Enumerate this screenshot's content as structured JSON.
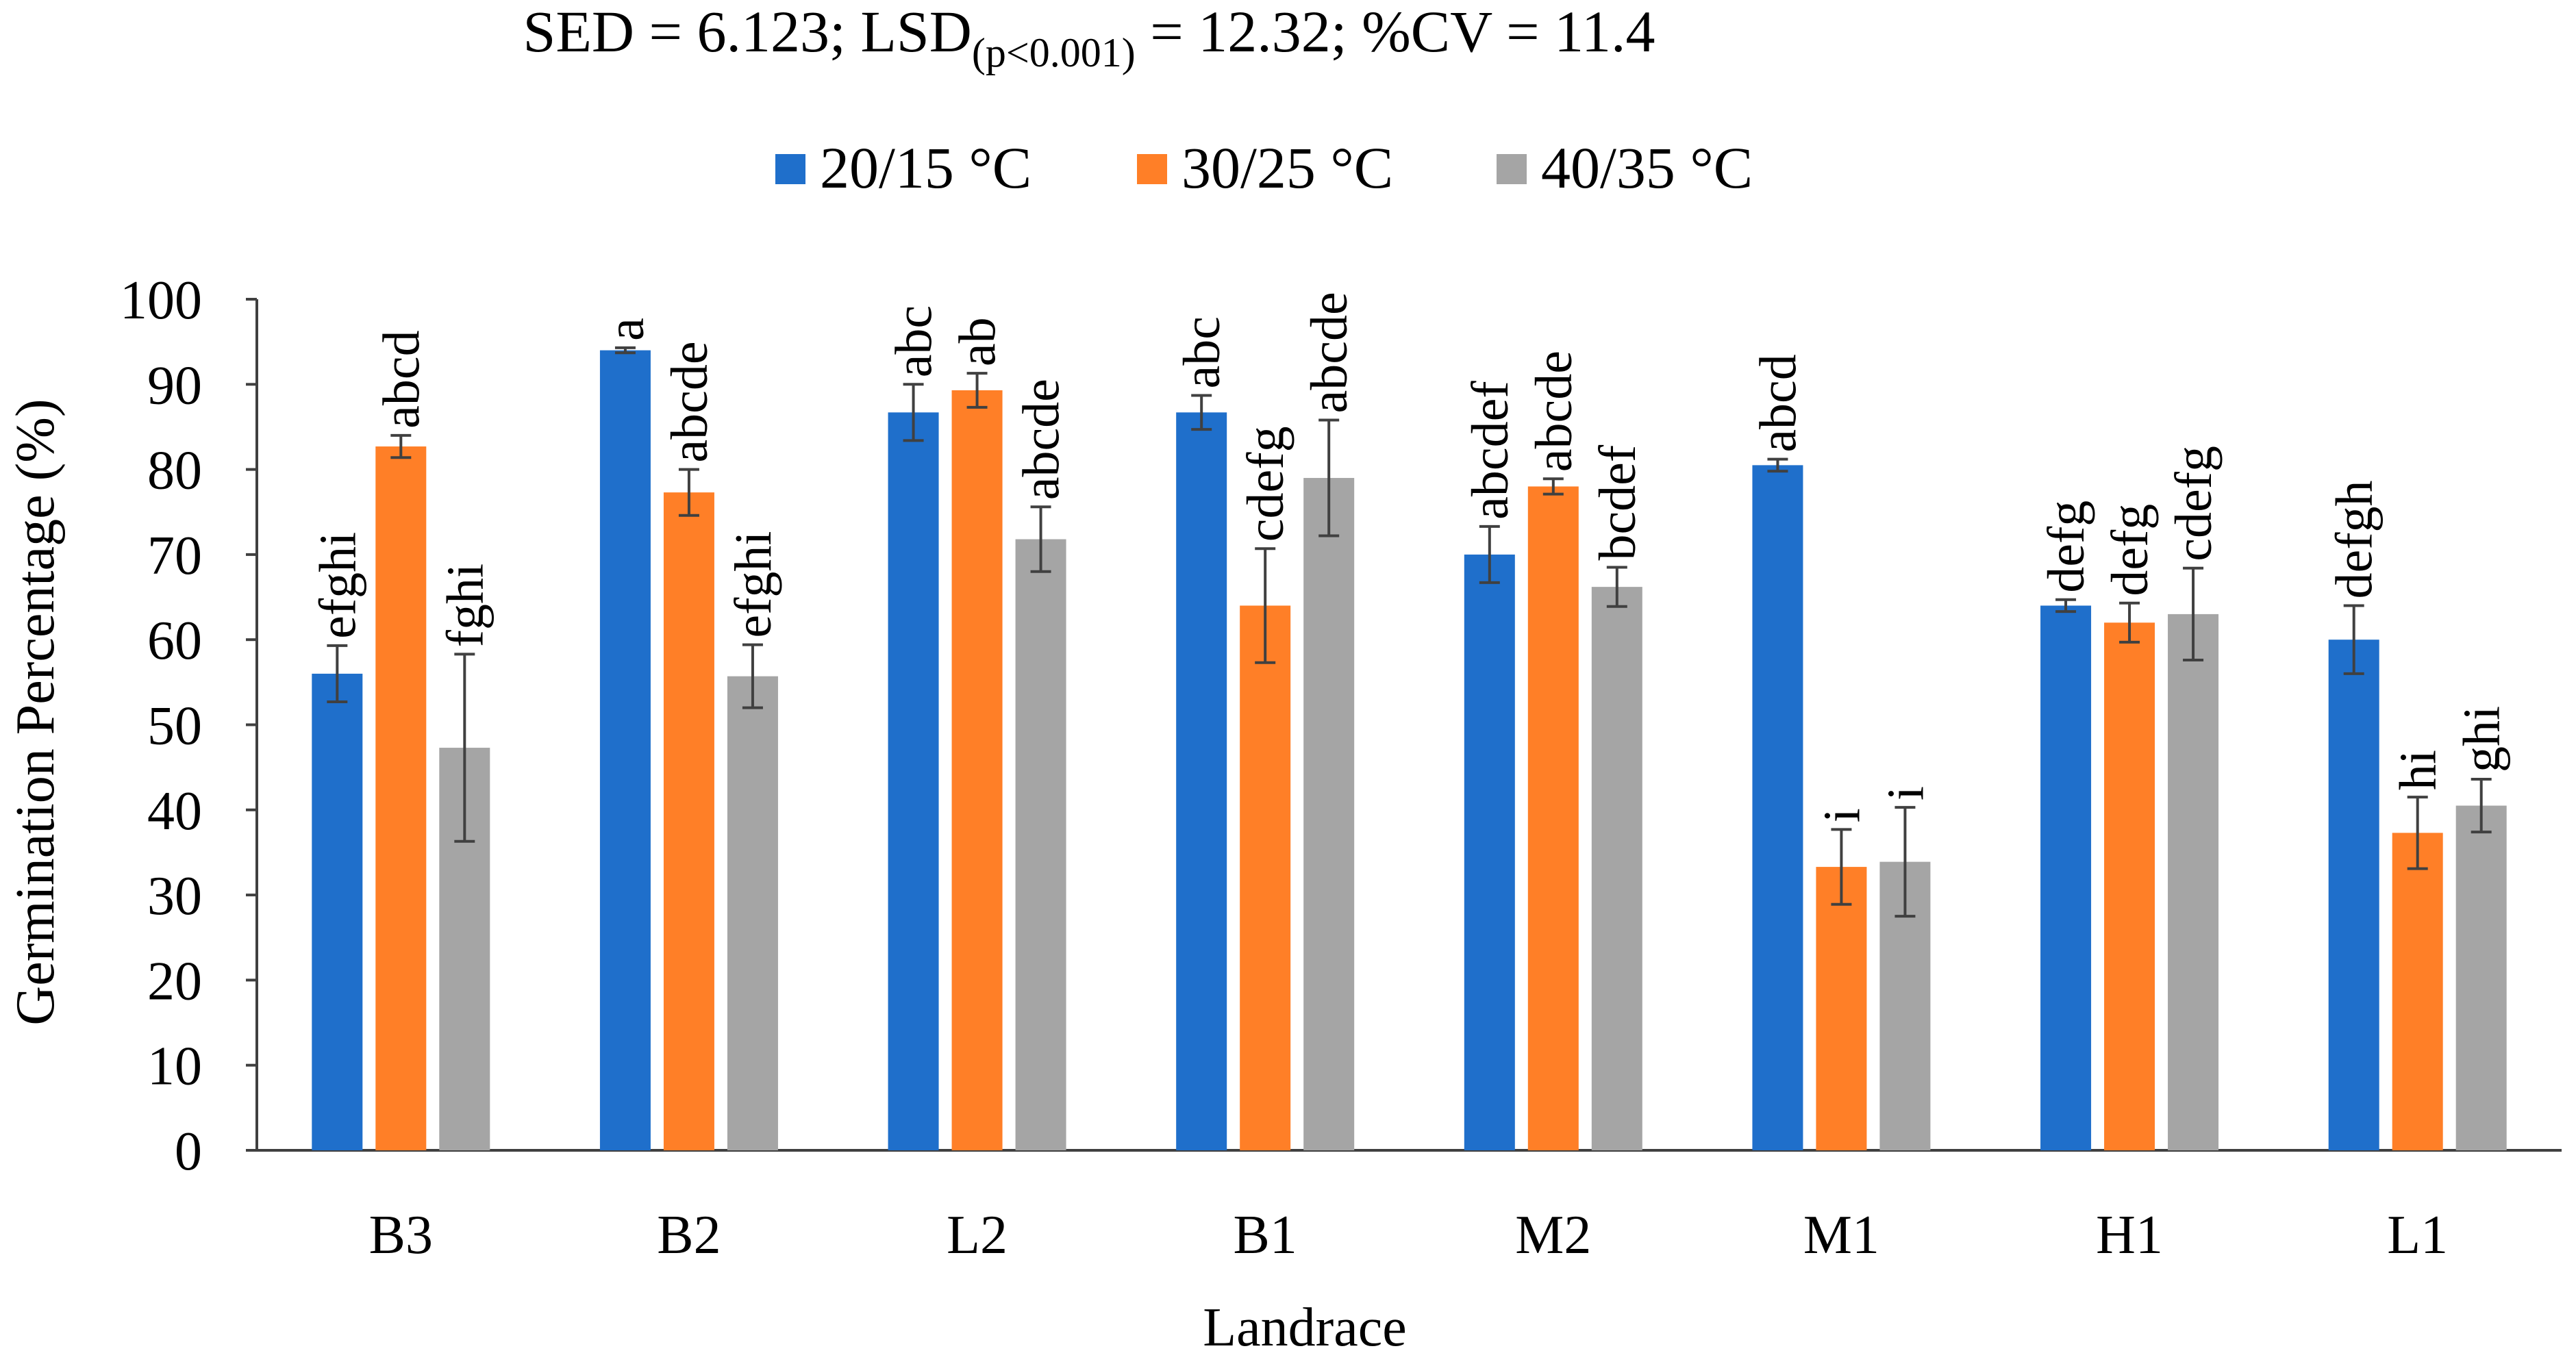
{
  "chart_data": {
    "type": "bar",
    "title": {
      "prefix": "SED = 6.123; LSD",
      "subscript": "(p<0.001)",
      "suffix": " = 12.32; %CV = 11.4"
    },
    "xlabel": "Landrace",
    "ylabel": "Germination Percentage (%)",
    "ylim": [
      0,
      100
    ],
    "yticks": [
      0,
      10,
      20,
      30,
      40,
      50,
      60,
      70,
      80,
      90,
      100
    ],
    "grid": false,
    "legend_position": "top",
    "categories": [
      "B3",
      "B2",
      "L2",
      "B1",
      "M2",
      "M1",
      "H1",
      "L1"
    ],
    "series": [
      {
        "name": "20/15 °C",
        "color": "#1F6FCB",
        "values": [
          56,
          94,
          86.7,
          86.7,
          70,
          80.5,
          64,
          60
        ],
        "errors": [
          3.3,
          0.3,
          3.3,
          2,
          3.3,
          0.7,
          0.7,
          4
        ],
        "letters": [
          "efghi",
          "a",
          "abc",
          "abc",
          "abcdef",
          "abcd",
          "defg",
          "defgh"
        ]
      },
      {
        "name": "30/25 °C",
        "color": "#FF7F27",
        "values": [
          82.7,
          77.3,
          89.3,
          64,
          78,
          33.3,
          62,
          37.3
        ],
        "errors": [
          1.3,
          2.7,
          2,
          6.7,
          0.9,
          4.4,
          2.3,
          4.2
        ],
        "letters": [
          "abcd",
          "abcde",
          "ab",
          "cdefg",
          "abcde",
          "i",
          "defg",
          "hi"
        ]
      },
      {
        "name": "40/35 °C",
        "color": "#A5A5A5",
        "values": [
          47.3,
          55.7,
          71.8,
          79,
          66.2,
          33.9,
          63,
          40.5
        ],
        "errors": [
          11,
          3.7,
          3.8,
          6.8,
          2.3,
          6.4,
          5.4,
          3.1
        ],
        "letters": [
          "fghi",
          "efghi",
          "abcde",
          "abcde",
          "bcdef",
          "i",
          "cdefg",
          "ghi"
        ]
      }
    ]
  }
}
